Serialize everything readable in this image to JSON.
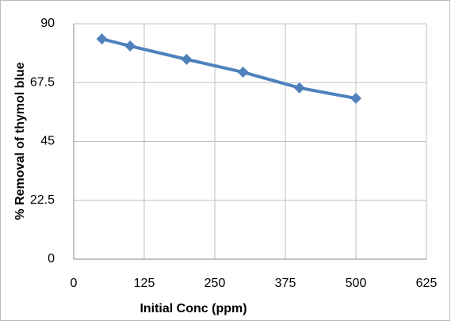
{
  "chart_data": {
    "type": "line",
    "x_label": "Initial Conc (ppm)",
    "y_label": "% Removal of thymol blue",
    "x": [
      50,
      100,
      200,
      300,
      400,
      500
    ],
    "series": [
      {
        "name": "% Removal",
        "color": "#4f81bd",
        "values": [
          84.2,
          81.5,
          76.4,
          71.5,
          65.5,
          61.5
        ]
      }
    ],
    "xlim": [
      0,
      625
    ],
    "xticks": [
      0,
      125,
      250,
      375,
      500,
      625
    ],
    "ylim": [
      0,
      90
    ],
    "yticks": [
      0,
      22.5,
      45,
      67.5,
      90
    ],
    "grid": true
  }
}
